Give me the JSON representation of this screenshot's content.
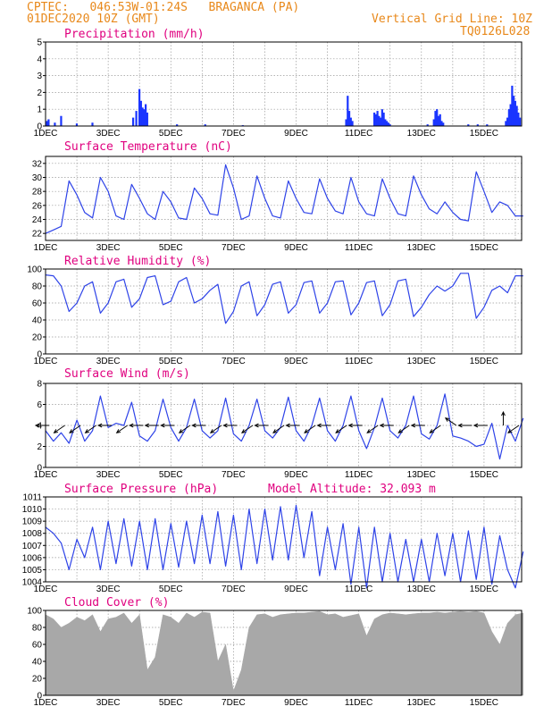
{
  "header": {
    "line1": "CPTEC:   046:53W-01:24S   BRAGANCA (PA)",
    "line2": "01DEC2020 10Z (GMT)",
    "grid_note": "Vertical Grid Line: 10Z",
    "code": "TQ0126L028"
  },
  "chart_data": [
    {
      "type": "bar",
      "title": "Precipitation (mm/h)",
      "ylim": [
        0,
        5
      ],
      "yticks": [
        "0",
        "1",
        "2",
        "3",
        "4",
        "5"
      ],
      "xticks": [
        "1DEC",
        "3DEC",
        "5DEC",
        "7DEC",
        "9DEC",
        "11DEC",
        "13DEC",
        "15DEC"
      ],
      "x": [
        0.05,
        0.1,
        0.3,
        0.5,
        1.0,
        1.5,
        2.8,
        2.9,
        3.0,
        3.05,
        3.1,
        3.15,
        3.2,
        3.25,
        4.2,
        5.1,
        6.3,
        9.6,
        9.65,
        9.7,
        9.75,
        9.8,
        10.5,
        10.55,
        10.6,
        10.65,
        10.7,
        10.75,
        10.8,
        10.85,
        10.9,
        10.95,
        11.0,
        12.2,
        12.4,
        12.45,
        12.5,
        12.55,
        12.6,
        12.65,
        12.7,
        13.5,
        13.8,
        14.1,
        14.7,
        14.75,
        14.8,
        14.85,
        14.9,
        14.95,
        15.0,
        15.05,
        15.1,
        15.15
      ],
      "values": [
        0.3,
        0.4,
        0.2,
        0.6,
        0.15,
        0.2,
        0.5,
        0.9,
        2.2,
        1.5,
        1.1,
        1.0,
        1.3,
        0.8,
        0.1,
        0.1,
        0.05,
        0.4,
        1.8,
        0.9,
        0.5,
        0.3,
        0.8,
        0.7,
        0.9,
        0.6,
        0.5,
        1.0,
        0.8,
        0.4,
        0.3,
        0.2,
        0.1,
        0.1,
        0.4,
        0.9,
        1.0,
        0.6,
        0.7,
        0.3,
        0.2,
        0.1,
        0.1,
        0.1,
        0.3,
        0.5,
        1.0,
        1.3,
        2.4,
        1.8,
        1.5,
        1.2,
        0.8,
        0.5
      ]
    },
    {
      "type": "line",
      "title": "Surface Temperature (nC)",
      "ylim": [
        21,
        33
      ],
      "yticks": [
        "22",
        "24",
        "26",
        "28",
        "30",
        "32"
      ],
      "xticks": [
        "1DEC",
        "3DEC",
        "5DEC",
        "7DEC",
        "9DEC",
        "11DEC",
        "13DEC",
        "15DEC"
      ],
      "x": [
        0,
        0.25,
        0.5,
        0.75,
        1.0,
        1.25,
        1.5,
        1.75,
        2.0,
        2.25,
        2.5,
        2.75,
        3.0,
        3.25,
        3.5,
        3.75,
        4.0,
        4.25,
        4.5,
        4.75,
        5.0,
        5.25,
        5.5,
        5.75,
        6.0,
        6.25,
        6.5,
        6.75,
        7.0,
        7.25,
        7.5,
        7.75,
        8.0,
        8.25,
        8.5,
        8.75,
        9.0,
        9.25,
        9.5,
        9.75,
        10.0,
        10.25,
        10.5,
        10.75,
        11.0,
        11.25,
        11.5,
        11.75,
        12.0,
        12.25,
        12.5,
        12.75,
        13.0,
        13.25,
        13.5,
        13.75,
        14.0,
        14.25,
        14.5,
        14.75,
        15.0,
        15.25
      ],
      "values": [
        22.0,
        22.5,
        23.0,
        29.5,
        27.5,
        25.0,
        24.2,
        30.0,
        28.0,
        24.5,
        24.0,
        29.0,
        27.0,
        24.8,
        24.0,
        28.0,
        26.5,
        24.2,
        24.0,
        28.5,
        27.0,
        24.8,
        24.6,
        31.8,
        28.5,
        24.0,
        24.5,
        30.2,
        27.0,
        24.5,
        24.2,
        29.5,
        27.0,
        25.0,
        24.8,
        29.8,
        27.0,
        25.2,
        24.8,
        30.0,
        26.5,
        24.8,
        24.5,
        29.8,
        27.0,
        24.8,
        24.5,
        30.2,
        27.5,
        25.5,
        24.8,
        26.5,
        25.0,
        24.0,
        23.8,
        30.8,
        28.0,
        25.0,
        26.5,
        26.0,
        24.5,
        24.5
      ]
    },
    {
      "type": "line",
      "title": "Relative Humidity (%)",
      "ylim": [
        0,
        100
      ],
      "yticks": [
        "0",
        "20",
        "40",
        "60",
        "80",
        "100"
      ],
      "xticks": [
        "1DEC",
        "3DEC",
        "5DEC",
        "7DEC",
        "9DEC",
        "11DEC",
        "13DEC",
        "15DEC"
      ],
      "x": [
        0,
        0.25,
        0.5,
        0.75,
        1.0,
        1.25,
        1.5,
        1.75,
        2.0,
        2.25,
        2.5,
        2.75,
        3.0,
        3.25,
        3.5,
        3.75,
        4.0,
        4.25,
        4.5,
        4.75,
        5.0,
        5.25,
        5.5,
        5.75,
        6.0,
        6.25,
        6.5,
        6.75,
        7.0,
        7.25,
        7.5,
        7.75,
        8.0,
        8.25,
        8.5,
        8.75,
        9.0,
        9.25,
        9.5,
        9.75,
        10.0,
        10.25,
        10.5,
        10.75,
        11.0,
        11.25,
        11.5,
        11.75,
        12.0,
        12.25,
        12.5,
        12.75,
        13.0,
        13.25,
        13.5,
        13.75,
        14.0,
        14.25,
        14.5,
        14.75,
        15.0,
        15.25
      ],
      "values": [
        93,
        92,
        80,
        50,
        60,
        80,
        85,
        48,
        60,
        85,
        88,
        55,
        65,
        90,
        92,
        58,
        62,
        85,
        90,
        60,
        65,
        75,
        82,
        36,
        50,
        80,
        85,
        45,
        58,
        82,
        85,
        48,
        58,
        84,
        86,
        48,
        60,
        85,
        86,
        46,
        60,
        84,
        86,
        45,
        58,
        86,
        88,
        44,
        55,
        70,
        80,
        74,
        80,
        95,
        95,
        42,
        55,
        75,
        80,
        72,
        92,
        92
      ]
    },
    {
      "type": "line",
      "title": "Surface Wind (m/s)",
      "ylim": [
        0,
        8
      ],
      "yticks": [
        "0",
        "2",
        "4",
        "6",
        "8"
      ],
      "xticks": [
        "1DEC",
        "3DEC",
        "5DEC",
        "7DEC",
        "9DEC",
        "11DEC",
        "13DEC",
        "15DEC"
      ],
      "x": [
        0,
        0.25,
        0.5,
        0.75,
        1.0,
        1.25,
        1.5,
        1.75,
        2.0,
        2.25,
        2.5,
        2.75,
        3.0,
        3.25,
        3.5,
        3.75,
        4.0,
        4.25,
        4.5,
        4.75,
        5.0,
        5.25,
        5.5,
        5.75,
        6.0,
        6.25,
        6.5,
        6.75,
        7.0,
        7.25,
        7.5,
        7.75,
        8.0,
        8.25,
        8.5,
        8.75,
        9.0,
        9.25,
        9.5,
        9.75,
        10.0,
        10.25,
        10.5,
        10.75,
        11.0,
        11.25,
        11.5,
        11.75,
        12.0,
        12.25,
        12.5,
        12.75,
        13.0,
        13.25,
        13.5,
        13.75,
        14.0,
        14.25,
        14.5,
        14.75,
        15.0,
        15.25
      ],
      "values": [
        3.5,
        2.5,
        3.3,
        2.3,
        4.5,
        2.5,
        3.5,
        6.8,
        3.8,
        4.2,
        4.0,
        6.2,
        3.0,
        2.5,
        3.5,
        6.5,
        3.8,
        2.5,
        3.8,
        6.5,
        3.5,
        2.8,
        3.5,
        6.6,
        3.2,
        2.5,
        4.0,
        6.5,
        3.5,
        2.8,
        3.8,
        6.7,
        3.5,
        2.5,
        4.0,
        6.6,
        3.5,
        2.5,
        4.0,
        6.8,
        3.5,
        1.8,
        3.8,
        6.6,
        3.5,
        2.8,
        4.0,
        6.8,
        3.2,
        2.7,
        4.0,
        7.0,
        3.0,
        2.8,
        2.5,
        2.0,
        2.2,
        4.2,
        0.8,
        4.0,
        2.5,
        4.7
      ]
    },
    {
      "type": "line",
      "title": "Surface Pressure (hPa)",
      "subtitle": "Model Altitude: 32.093 m",
      "ylim": [
        1004,
        1011
      ],
      "yticks": [
        "1004",
        "1005",
        "1006",
        "1007",
        "1008",
        "1009",
        "1010",
        "1011"
      ],
      "xticks": [
        "1DEC",
        "3DEC",
        "5DEC",
        "7DEC",
        "9DEC",
        "11DEC",
        "13DEC",
        "15DEC"
      ],
      "x": [
        0,
        0.25,
        0.5,
        0.75,
        1.0,
        1.25,
        1.5,
        1.75,
        2.0,
        2.25,
        2.5,
        2.75,
        3.0,
        3.25,
        3.5,
        3.75,
        4.0,
        4.25,
        4.5,
        4.75,
        5.0,
        5.25,
        5.5,
        5.75,
        6.0,
        6.25,
        6.5,
        6.75,
        7.0,
        7.25,
        7.5,
        7.75,
        8.0,
        8.25,
        8.5,
        8.75,
        9.0,
        9.25,
        9.5,
        9.75,
        10.0,
        10.25,
        10.5,
        10.75,
        11.0,
        11.25,
        11.5,
        11.75,
        12.0,
        12.25,
        12.5,
        12.75,
        13.0,
        13.25,
        13.5,
        13.75,
        14.0,
        14.25,
        14.5,
        14.75,
        15.0,
        15.25
      ],
      "values": [
        1008.5,
        1008.0,
        1007.2,
        1005.0,
        1007.5,
        1006.0,
        1008.5,
        1005.0,
        1009.0,
        1005.5,
        1009.2,
        1005.3,
        1009.0,
        1005.0,
        1009.2,
        1005.0,
        1008.8,
        1005.2,
        1009.0,
        1005.5,
        1009.5,
        1005.5,
        1009.8,
        1005.3,
        1009.5,
        1005.0,
        1010.0,
        1005.5,
        1010.0,
        1005.8,
        1010.2,
        1005.8,
        1010.3,
        1006.0,
        1009.8,
        1004.5,
        1008.5,
        1005.0,
        1008.8,
        1003.8,
        1008.5,
        1003.5,
        1008.5,
        1004.0,
        1008.0,
        1004.0,
        1007.5,
        1004.0,
        1007.5,
        1004.0,
        1008.0,
        1004.5,
        1008.0,
        1004.0,
        1008.2,
        1004.2,
        1008.5,
        1003.8,
        1007.8,
        1005.0,
        1003.5,
        1006.5
      ]
    },
    {
      "type": "area",
      "title": "Cloud Cover (%)",
      "ylim": [
        0,
        100
      ],
      "yticks": [
        "0",
        "20",
        "40",
        "60",
        "80",
        "100"
      ],
      "xticks": [
        "1DEC",
        "3DEC",
        "5DEC",
        "7DEC",
        "9DEC",
        "11DEC",
        "13DEC",
        "15DEC"
      ],
      "x": [
        0,
        0.25,
        0.5,
        0.75,
        1.0,
        1.25,
        1.5,
        1.75,
        2.0,
        2.25,
        2.5,
        2.75,
        3.0,
        3.25,
        3.5,
        3.75,
        4.0,
        4.25,
        4.5,
        4.75,
        5.0,
        5.25,
        5.5,
        5.75,
        6.0,
        6.25,
        6.5,
        6.75,
        7.0,
        7.25,
        7.5,
        7.75,
        8.0,
        8.25,
        8.5,
        8.75,
        9.0,
        9.25,
        9.5,
        9.75,
        10.0,
        10.25,
        10.5,
        10.75,
        11.0,
        11.25,
        11.5,
        11.75,
        12.0,
        12.25,
        12.5,
        12.75,
        13.0,
        13.25,
        13.5,
        13.75,
        14.0,
        14.25,
        14.5,
        14.75,
        15.0,
        15.25
      ],
      "values": [
        95,
        90,
        80,
        85,
        92,
        88,
        95,
        75,
        90,
        92,
        97,
        85,
        95,
        30,
        45,
        95,
        92,
        85,
        97,
        92,
        98,
        97,
        40,
        60,
        5,
        30,
        80,
        95,
        96,
        92,
        95,
        96,
        97,
        97,
        98,
        99,
        95,
        96,
        92,
        94,
        96,
        70,
        90,
        95,
        97,
        96,
        95,
        96,
        97,
        97,
        98,
        97,
        98,
        99,
        98,
        99,
        97,
        75,
        60,
        85,
        95,
        97
      ]
    }
  ],
  "wind_vectors": {
    "x": [
      0.0,
      0.5,
      1.0,
      1.5,
      2.0,
      2.5,
      3.0,
      3.5,
      4.0,
      4.5,
      5.0,
      5.5,
      6.0,
      6.5,
      7.0,
      7.5,
      8.0,
      8.5,
      9.0,
      9.5,
      10.0,
      10.5,
      11.0,
      11.5,
      12.0,
      12.5,
      13.0,
      13.5,
      14.0,
      14.5,
      15.0
    ],
    "dir": [
      "W",
      "SW",
      "SW",
      "SW",
      "W",
      "SW",
      "W",
      "W",
      "W",
      "SW",
      "W",
      "SW",
      "W",
      "SW",
      "W",
      "SW",
      "W",
      "SW",
      "W",
      "SW",
      "W",
      "SW",
      "W",
      "SW",
      "W",
      "SW",
      "NW",
      "W",
      "W",
      "N",
      "SW"
    ]
  }
}
